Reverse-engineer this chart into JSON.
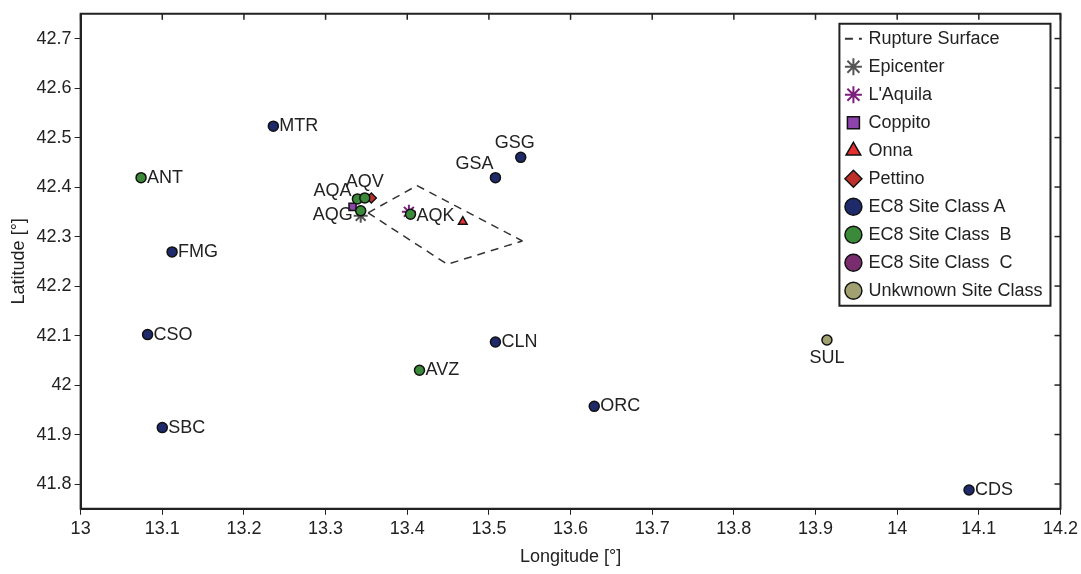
{
  "chart_data": {
    "type": "scatter",
    "xlabel": "Longitude [°]",
    "ylabel": "Latitude [°]",
    "xlim": [
      13,
      14.2
    ],
    "ylim": [
      41.75,
      42.75
    ],
    "xticks": [
      13,
      13.1,
      13.2,
      13.3,
      13.4,
      13.5,
      13.6,
      13.7,
      13.8,
      13.9,
      14,
      14.1,
      14.2
    ],
    "yticks": [
      41.8,
      41.9,
      42,
      42.1,
      42.2,
      42.3,
      42.4,
      42.5,
      42.6,
      42.7
    ],
    "grid": false,
    "legend": "top right",
    "series": [
      {
        "name": "Rupture Surface",
        "type": "line",
        "color": "#333333",
        "line_style": "dashed",
        "marker": "none",
        "x": [
          13.352,
          13.412,
          13.541
        ],
        "values": [
          42.348,
          42.403,
          42.291
        ]
      },
      {
        "type": "line",
        "color": "#333333",
        "line_style": "dashed",
        "marker": "none",
        "x": [
          13.352,
          13.449,
          13.541
        ],
        "values": [
          42.348,
          42.244,
          42.291
        ]
      },
      {
        "name": "Epicenter",
        "color": "#555555",
        "marker": "cross",
        "x": [
          13.343
        ],
        "values": [
          42.342
        ]
      },
      {
        "name": "L'Aquila",
        "color": "#7b1f7b",
        "marker": "cross",
        "x": [
          13.402
        ],
        "values": [
          42.35
        ]
      },
      {
        "name": "Coppito",
        "color": "#8e44ad",
        "marker": "square",
        "x": [
          13.333
        ],
        "values": [
          42.36
        ]
      },
      {
        "name": "Onna",
        "color": "#e53030",
        "marker": "triangle",
        "x": [
          13.468
        ],
        "values": [
          42.33
        ]
      },
      {
        "name": "Pettino",
        "color": "#c0302a",
        "marker": "diamond",
        "x": [
          13.356
        ],
        "values": [
          42.378
        ]
      },
      {
        "name": "EC8 Site Class A",
        "color": "#1f2a6b",
        "marker": "circle",
        "x": [
          13.236,
          13.112,
          13.082,
          13.1,
          13.508,
          13.539,
          13.508,
          13.629,
          14.088
        ],
        "values": [
          42.523,
          42.269,
          42.102,
          41.914,
          42.419,
          42.46,
          42.087,
          41.957,
          41.788
        ]
      },
      {
        "name": "EC8 Site Class  B",
        "color": "#3a8a3a",
        "marker": "circle",
        "x": [
          13.074,
          13.339,
          13.348,
          13.343,
          13.404,
          13.415
        ],
        "values": [
          42.419,
          42.376,
          42.378,
          42.352,
          42.345,
          42.03
        ]
      },
      {
        "name": "EC8 Site Class  C",
        "color": "#7a2d6e",
        "marker": "circle"
      },
      {
        "name": "Unkwnown Site Class",
        "color": "#a0a070",
        "marker": "circle",
        "x": [
          13.914
        ],
        "values": [
          42.091
        ]
      }
    ],
    "annotations": [
      {
        "text": "MTR",
        "x": 13.236,
        "y": 42.523
      },
      {
        "text": "ANT",
        "x": 13.074,
        "y": 42.419
      },
      {
        "text": "FMG",
        "x": 13.112,
        "y": 42.269
      },
      {
        "text": "CSO",
        "x": 13.082,
        "y": 42.102
      },
      {
        "text": "SBC",
        "x": 13.1,
        "y": 41.914
      },
      {
        "text": "GSA",
        "x": 13.508,
        "y": 42.419
      },
      {
        "text": "GSG",
        "x": 13.539,
        "y": 42.46
      },
      {
        "text": "CLN",
        "x": 13.508,
        "y": 42.087
      },
      {
        "text": "ORC",
        "x": 13.629,
        "y": 41.957
      },
      {
        "text": "CDS",
        "x": 14.088,
        "y": 41.788
      },
      {
        "text": "AQA",
        "x": 13.339,
        "y": 42.376
      },
      {
        "text": "AQV",
        "x": 13.348,
        "y": 42.378
      },
      {
        "text": "AQG",
        "x": 13.343,
        "y": 42.352
      },
      {
        "text": "AQK",
        "x": 13.404,
        "y": 42.345
      },
      {
        "text": "AVZ",
        "x": 13.415,
        "y": 42.03
      },
      {
        "text": "SUL",
        "x": 13.914,
        "y": 42.091
      }
    ]
  }
}
